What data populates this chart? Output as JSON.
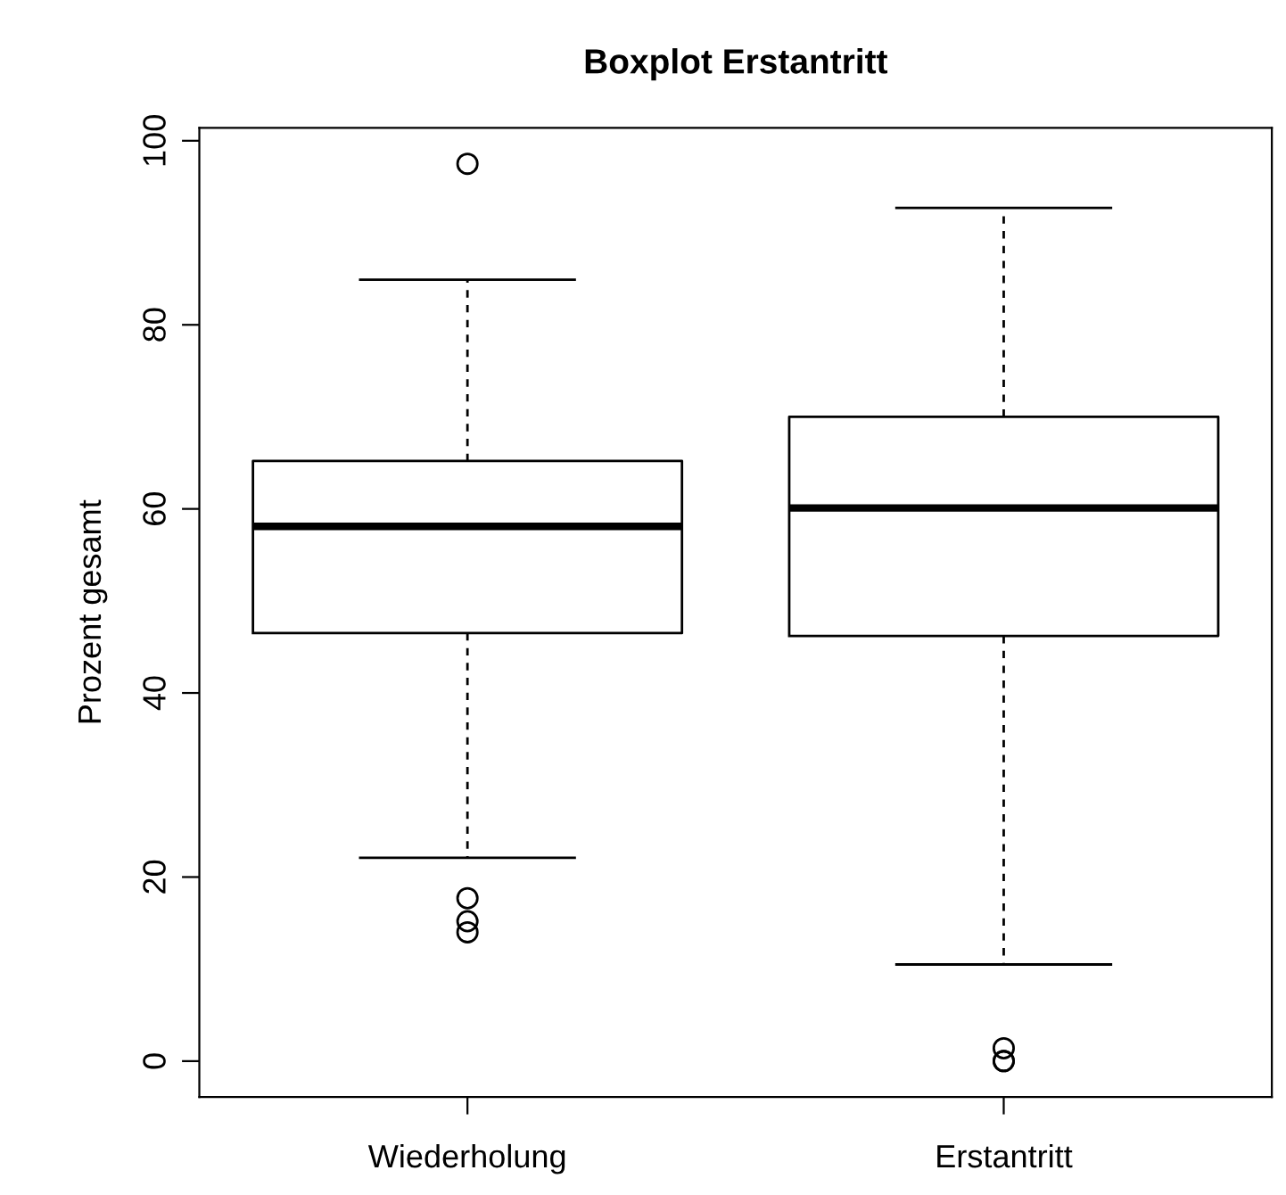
{
  "chart_data": {
    "type": "box",
    "title": "Boxplot Erstantritt",
    "ylabel": "Prozent gesamt",
    "categories": [
      "Wiederholung",
      "Erstantritt"
    ],
    "boxes": [
      {
        "low": 22.1,
        "q1": 46.5,
        "median": 58.1,
        "q3": 65.2,
        "high": 84.9,
        "outliers": [
          97.5,
          17.7,
          15.2,
          14.0
        ]
      },
      {
        "low": 10.5,
        "q1": 46.2,
        "median": 60.1,
        "q3": 70.0,
        "high": 92.7,
        "outliers": [
          1.4,
          0,
          0
        ]
      }
    ],
    "ylim": [
      -3.9,
      101.4
    ],
    "yticks": [
      0,
      20,
      40,
      60,
      80,
      100
    ],
    "grid": false
  }
}
